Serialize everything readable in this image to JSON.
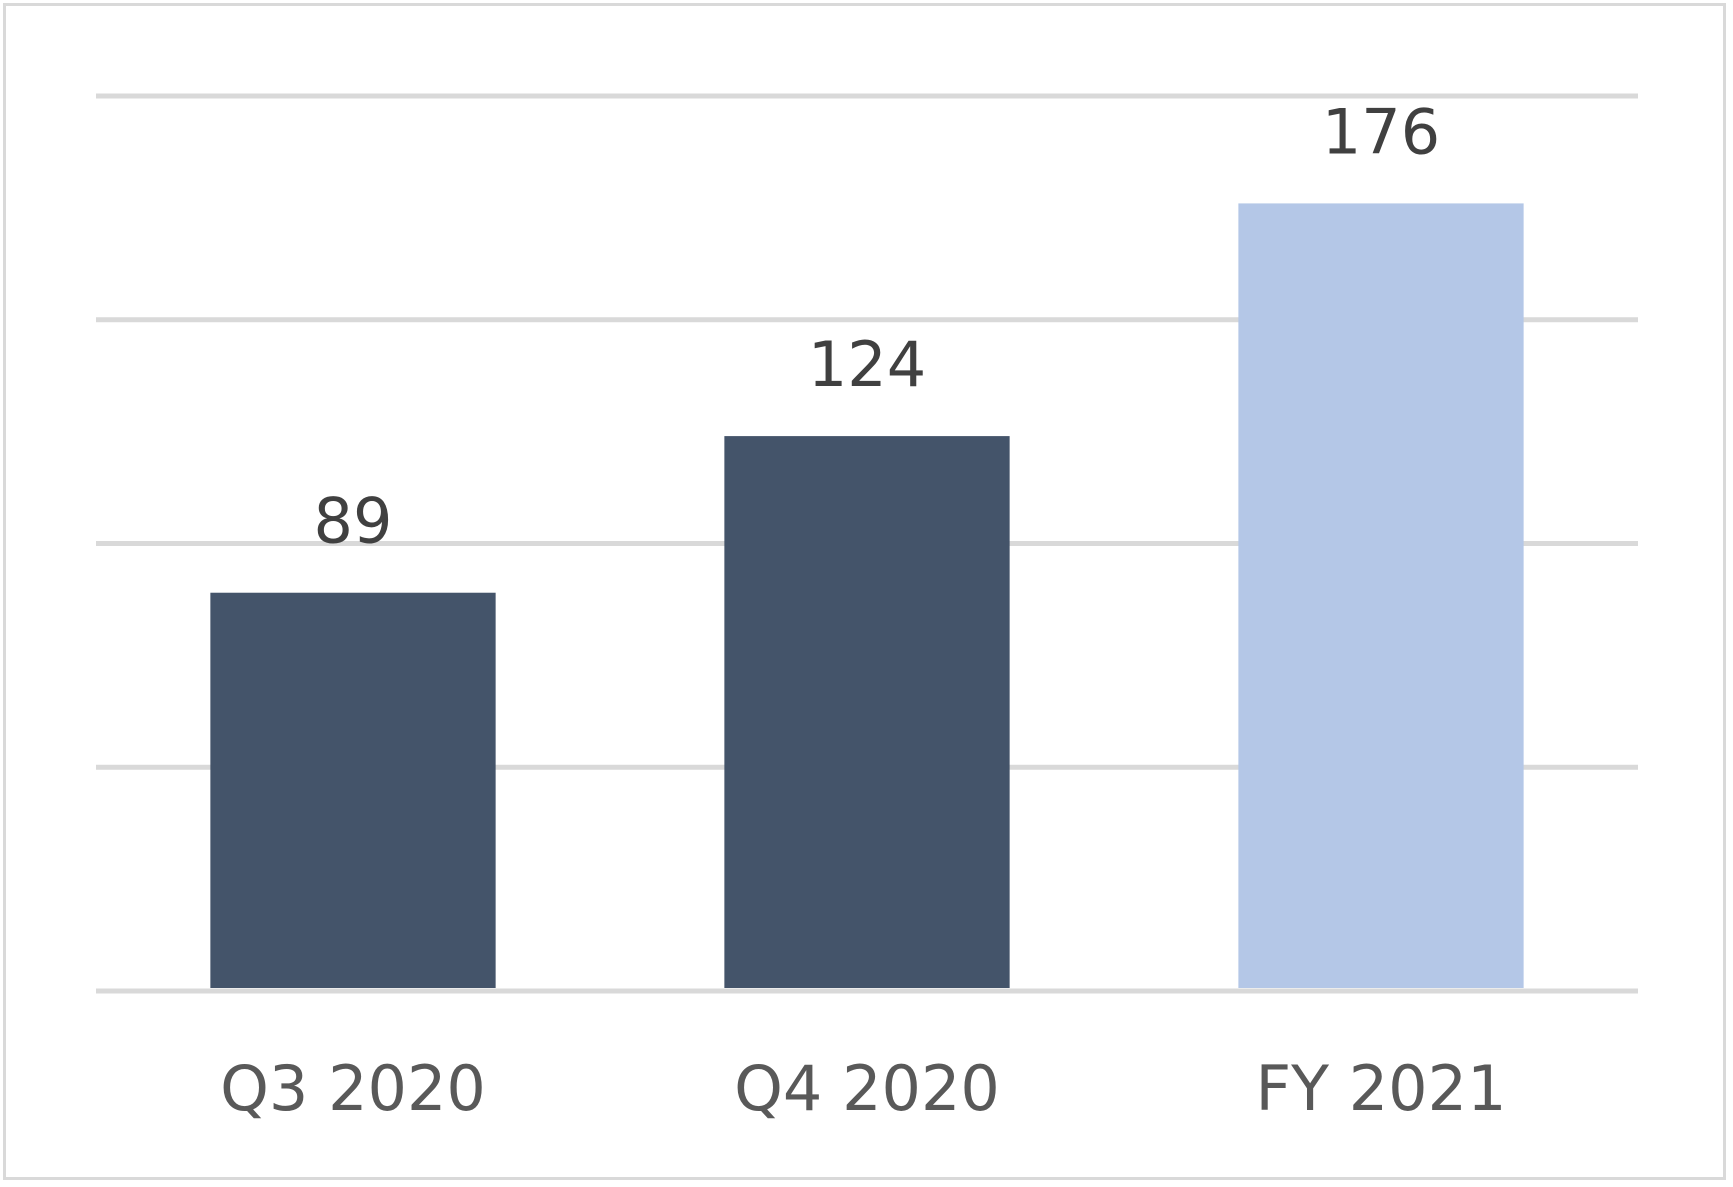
{
  "chart_data": {
    "type": "bar",
    "title": "",
    "xlabel": "",
    "ylabel": "",
    "categories": [
      "Q3 2020",
      "Q4 2020",
      "FY 2021"
    ],
    "values": [
      89,
      124,
      176
    ],
    "data_labels": [
      "89",
      "124",
      "176"
    ],
    "ylim": [
      0,
      200
    ],
    "gridlines": true,
    "legend": "none",
    "colors": [
      "#44546a",
      "#44546a",
      "#b4c7e7"
    ]
  }
}
